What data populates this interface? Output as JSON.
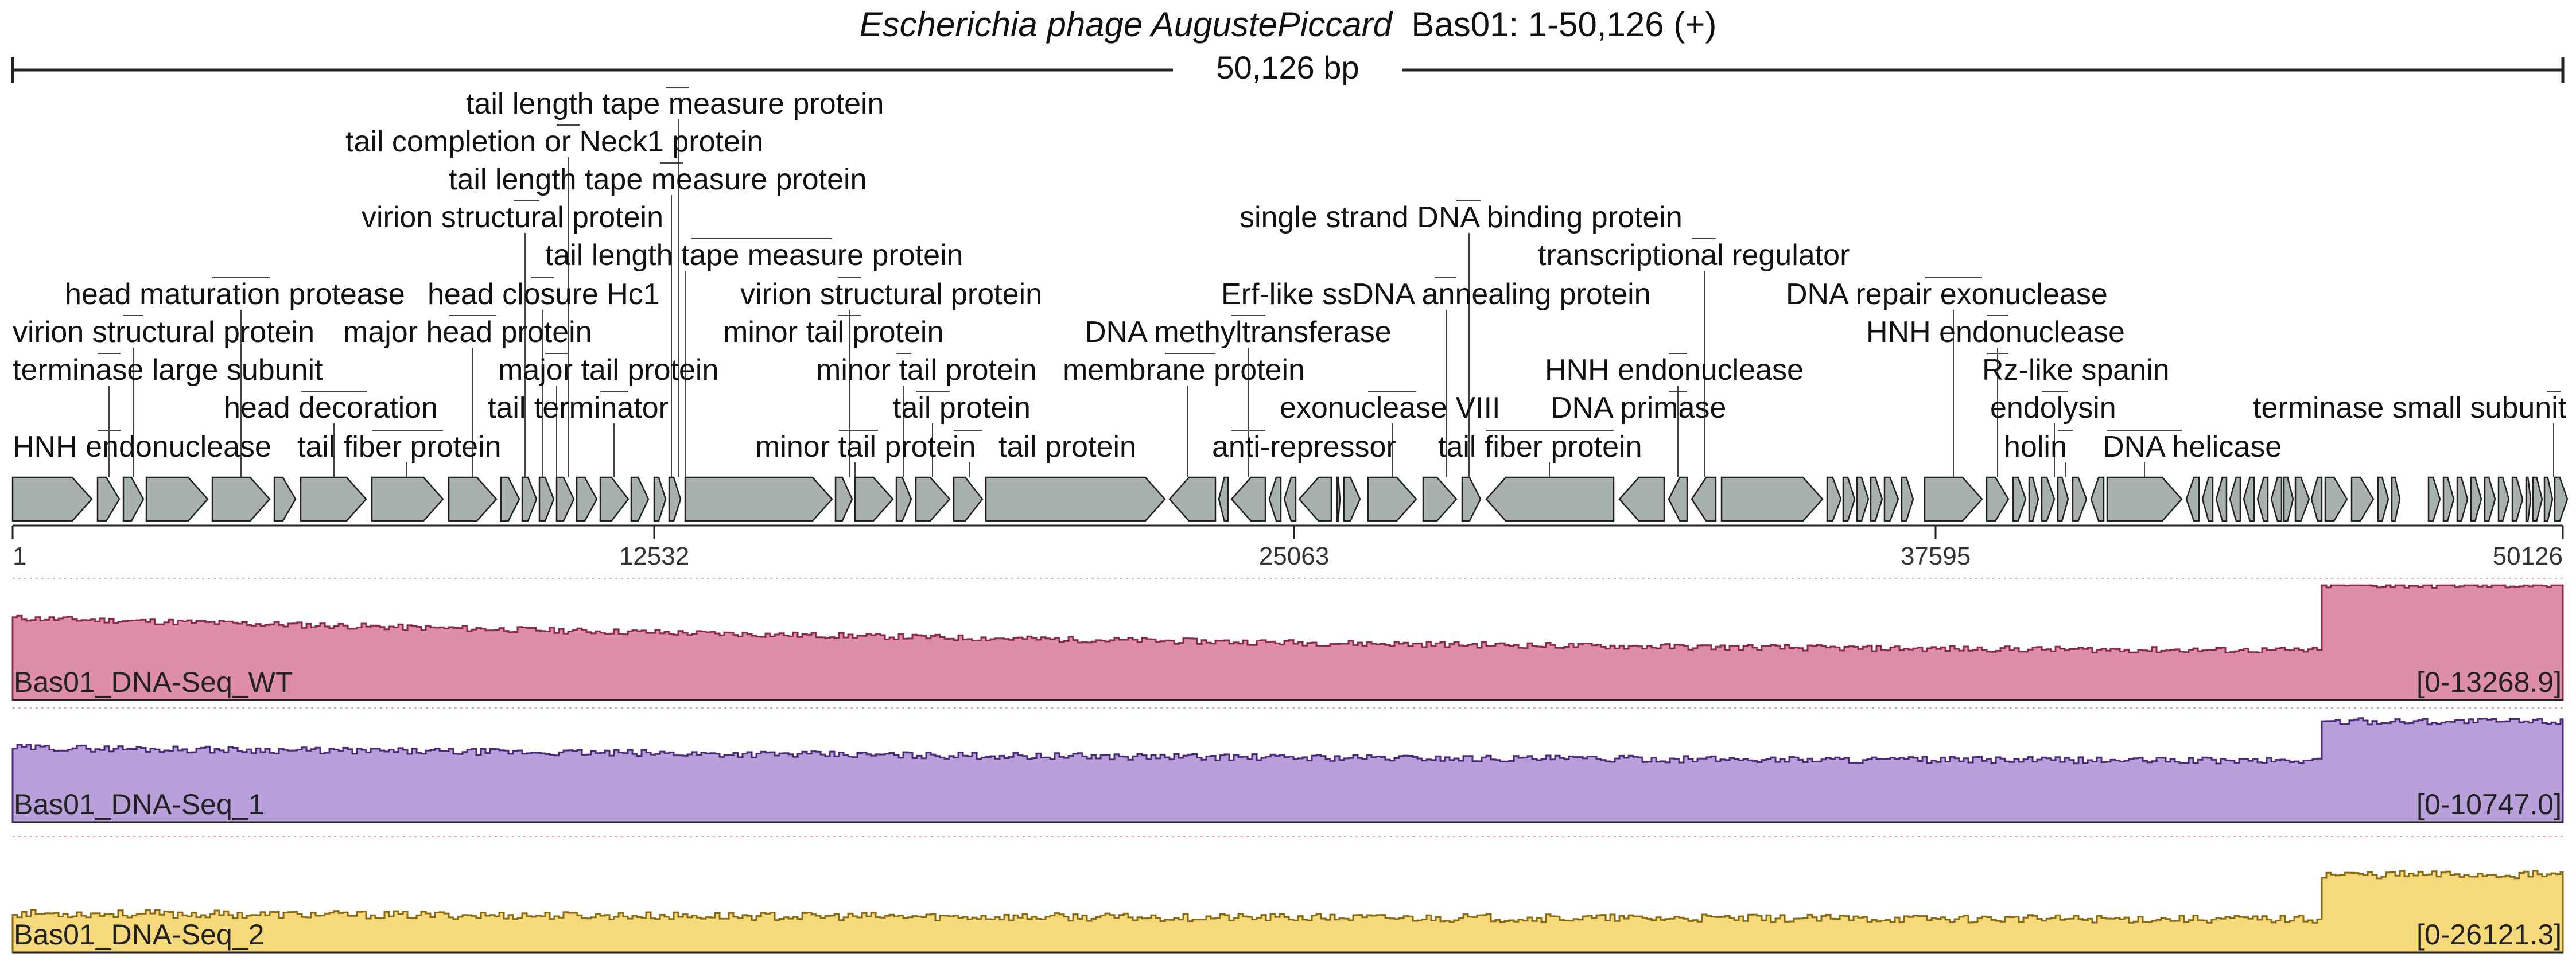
{
  "title": {
    "organism": "Escherichia phage AugustePiccard",
    "region": "Bas01: 1-50,126 (+)"
  },
  "sequence_length_label": "50,126 bp",
  "axis": {
    "ticks": [
      "1",
      "12532",
      "25063",
      "37595",
      "50126"
    ]
  },
  "colors": {
    "gene_fill": "#a9b0b0",
    "gene_stroke": "#222222",
    "track_wt": "#de8fa7",
    "track_wt_line": "#8a2a4a",
    "track_1": "#b9a0da",
    "track_1_line": "#4a2a7a",
    "track_2": "#f6d97a",
    "track_2_line": "#8a6a10"
  },
  "gene_labels": [
    {
      "text": "tail length tape measure protein"
    },
    {
      "text": "tail completion or Neck1 protein"
    },
    {
      "text": "tail length tape measure protein"
    },
    {
      "text": "virion structural protein"
    },
    {
      "text": "tail length tape measure protein"
    },
    {
      "text": "head maturation protease"
    },
    {
      "text": "head closure Hc1"
    },
    {
      "text": "virion structural protein"
    },
    {
      "text": "virion structural protein"
    },
    {
      "text": "major head protein"
    },
    {
      "text": "minor tail protein"
    },
    {
      "text": "terminase large subunit"
    },
    {
      "text": "major tail protein"
    },
    {
      "text": "minor tail protein"
    },
    {
      "text": "head decoration"
    },
    {
      "text": "tail terminator"
    },
    {
      "text": "tail protein"
    },
    {
      "text": "HNH endonuclease"
    },
    {
      "text": "tail fiber protein"
    },
    {
      "text": "minor tail protein"
    },
    {
      "text": "tail protein"
    },
    {
      "text": "single strand DNA binding protein"
    },
    {
      "text": "transcriptional regulator"
    },
    {
      "text": "Erf-like ssDNA annealing protein"
    },
    {
      "text": "DNA methyltransferase"
    },
    {
      "text": "membrane protein"
    },
    {
      "text": "HNH endonuclease"
    },
    {
      "text": "exonuclease VIII"
    },
    {
      "text": "DNA primase"
    },
    {
      "text": "anti-repressor"
    },
    {
      "text": "tail fiber protein"
    },
    {
      "text": "DNA repair exonuclease"
    },
    {
      "text": "HNH endonuclease"
    },
    {
      "text": "Rz-like spanin"
    },
    {
      "text": "endolysin"
    },
    {
      "text": "holin"
    },
    {
      "text": "DNA helicase"
    },
    {
      "text": "terminase small subunit"
    }
  ],
  "tracks": [
    {
      "name": "Bas01_DNA-Seq_WT",
      "range": "[0-13268.9]",
      "max": 13268.9
    },
    {
      "name": "Bas01_DNA-Seq_1",
      "range": "[0-10747.0]",
      "max": 10747.0
    },
    {
      "name": "Bas01_DNA-Seq_2",
      "range": "[0-26121.3]",
      "max": 26121.3
    }
  ]
}
